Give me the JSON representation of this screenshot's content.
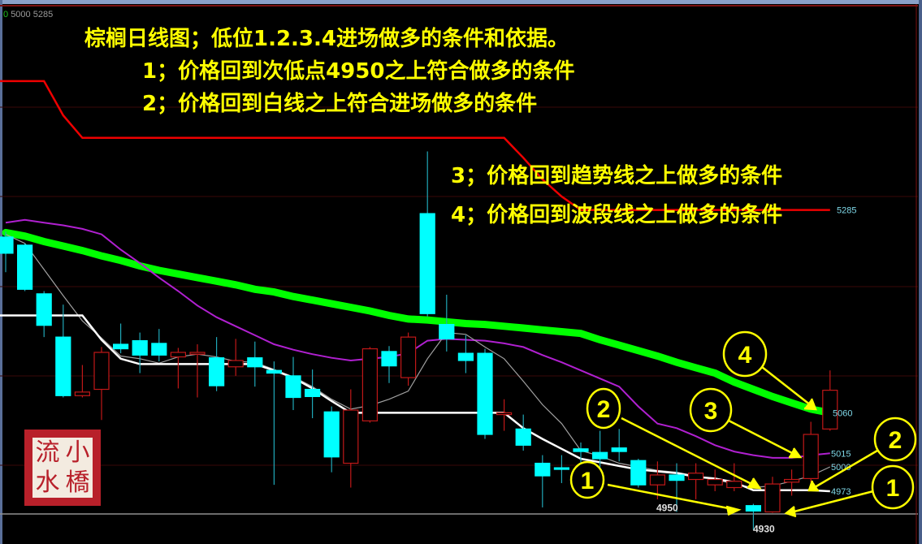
{
  "header": {
    "legend_zero": "0",
    "legend_values": "5000 5285"
  },
  "notes": {
    "title": "棕榈日线图；低位1.2.3.4进场做多的条件和依据。",
    "n1": "1；价格回到次低点4950之上符合做多的条件",
    "n2": "2；价格回到白线之上符合进场做多的条件",
    "n3": "3；价格回到趋势线之上做多的条件",
    "n4": "4；价格回到波段线之上做多的条件"
  },
  "markers": [
    "1",
    "2",
    "3",
    "4",
    "2",
    "1"
  ],
  "seal": {
    "chars": [
      "流",
      "小",
      "水",
      "橋"
    ]
  },
  "colors": {
    "up": "#c01818",
    "down": "#00ffff",
    "trend": "#00ff00",
    "band": "#b020d0",
    "white_line": "#ffffff",
    "thin_line": "#a0a0a0",
    "top_line": "#ee0000",
    "annotation": "#ffff00"
  },
  "chart_data": {
    "type": "candlestick",
    "ylim": [
      4914,
      5518
    ],
    "candles": [
      [
        5255,
        5261,
        5216,
        5237
      ],
      [
        5246,
        5248,
        5195,
        5197
      ],
      [
        5192,
        5195,
        5144,
        5157
      ],
      [
        5144,
        5180,
        5077,
        5079
      ],
      [
        5079,
        5113,
        5077,
        5083
      ],
      [
        5086,
        5133,
        5052,
        5127
      ],
      [
        5136,
        5159,
        5126,
        5131
      ],
      [
        5140,
        5149,
        5104,
        5124
      ],
      [
        5137,
        5153,
        5117,
        5124
      ],
      [
        5122,
        5132,
        5087,
        5127
      ],
      [
        5125,
        5136,
        5077,
        5127
      ],
      [
        5121,
        5144,
        5084,
        5090
      ],
      [
        5111,
        5142,
        5101,
        5118
      ],
      [
        5121,
        5139,
        5089,
        5111
      ],
      [
        5107,
        5117,
        4980,
        5104
      ],
      [
        5101,
        5122,
        5063,
        5077
      ],
      [
        5086,
        5108,
        5054,
        5078
      ],
      [
        5061,
        5067,
        4994,
        5011
      ],
      [
        5004,
        5086,
        4977,
        5063
      ],
      [
        5051,
        5133,
        5049,
        5131
      ],
      [
        5128,
        5134,
        5093,
        5112
      ],
      [
        5099,
        5149,
        5090,
        5144
      ],
      [
        5281,
        5350,
        5167,
        5170
      ],
      [
        5158,
        5191,
        5128,
        5142
      ],
      [
        5126,
        5146,
        5104,
        5118
      ],
      [
        5126,
        5131,
        5031,
        5036
      ],
      [
        5058,
        5075,
        5040,
        5060
      ],
      [
        5042,
        5058,
        5018,
        5024
      ],
      [
        5004,
        5013,
        4955,
        4990
      ],
      [
        4999,
        5013,
        4982,
        4998
      ],
      [
        5020,
        5027,
        5000,
        5017
      ],
      [
        5016,
        5040,
        4997,
        5009
      ],
      [
        5021,
        5042,
        5006,
        5017
      ],
      [
        5007,
        5009,
        4977,
        4980
      ],
      [
        4980,
        5006,
        4964,
        4991
      ],
      [
        4991,
        5004,
        4950,
        4985
      ],
      [
        4986,
        5004,
        4964,
        4993
      ],
      [
        4980,
        4997,
        4973,
        4986
      ],
      [
        4977,
        5004,
        4973,
        4984
      ],
      [
        4957,
        4959,
        4930,
        4951
      ],
      [
        4950,
        4989,
        4949,
        4981
      ],
      [
        4983,
        4997,
        4968,
        4986
      ],
      [
        4987,
        5050,
        4983,
        5036
      ],
      [
        5042,
        5107,
        5040,
        5085
      ]
    ],
    "candle_fields": [
      "open",
      "high",
      "low",
      "close"
    ],
    "lines": {
      "top_red": [
        5428,
        5428,
        5428,
        5390,
        5365,
        5365,
        5365,
        5365,
        5365,
        5365,
        5365,
        5365,
        5365,
        5365,
        5365,
        5365,
        5365,
        5365,
        5365,
        5365,
        5365,
        5365,
        5365,
        5365,
        5365,
        5365,
        5365,
        5343,
        5319,
        5300,
        5285,
        5285,
        5285,
        5285,
        5285,
        5285,
        5285,
        5285,
        5285,
        5285,
        5285,
        5285,
        5285,
        5285
      ],
      "green_trend": [
        5260,
        5256,
        5250,
        5245,
        5240,
        5234,
        5229,
        5223,
        5218,
        5214,
        5210,
        5206,
        5202,
        5197,
        5194,
        5189,
        5185,
        5181,
        5177,
        5173,
        5168,
        5164,
        5163,
        5161,
        5159,
        5158,
        5156,
        5154,
        5152,
        5150,
        5148,
        5141,
        5135,
        5129,
        5123,
        5116,
        5110,
        5104,
        5094,
        5086,
        5078,
        5071,
        5064,
        5060
      ],
      "purple_band": [
        5271,
        5274,
        5271,
        5268,
        5264,
        5258,
        5241,
        5226,
        5210,
        5195,
        5179,
        5166,
        5156,
        5146,
        5136,
        5130,
        5125,
        5121,
        5118,
        5120,
        5122,
        5126,
        5140,
        5142,
        5141,
        5140,
        5137,
        5133,
        5124,
        5116,
        5107,
        5098,
        5089,
        5067,
        5048,
        5043,
        5034,
        5024,
        5017,
        5013,
        5010,
        5010,
        5013,
        5015
      ],
      "white": [
        5168,
        5168,
        5168,
        5168,
        5168,
        5141,
        5120,
        5114,
        5114,
        5114,
        5114,
        5114,
        5114,
        5114,
        5107,
        5099,
        5087,
        5073,
        5060,
        5060,
        5060,
        5060,
        5060,
        5060,
        5060,
        5060,
        5060,
        5043,
        5031,
        5020,
        5009,
        5005,
        5001,
        4997,
        4995,
        4993,
        4989,
        4987,
        4983,
        4974,
        4974,
        4974,
        4974,
        4973
      ],
      "gray_thin": [
        5258,
        5248,
        5219,
        5190,
        5162,
        5143,
        5123,
        5120,
        5115,
        5122,
        5125,
        5122,
        5117,
        5116,
        5108,
        5100,
        5089,
        5075,
        5064,
        5068,
        5075,
        5084,
        5120,
        5149,
        5147,
        5133,
        5120,
        5095,
        5069,
        5048,
        5018,
        5012,
        5004,
        5000,
        4996,
        4994,
        4990,
        4986,
        4981,
        4977,
        4979,
        4984,
        4990,
        5000
      ]
    },
    "price_labels": [
      {
        "text": "5285",
        "value": 5285
      },
      {
        "text": "5060",
        "value": 5060
      },
      {
        "text": "5015",
        "value": 5015
      },
      {
        "text": "5000",
        "value": 5000
      },
      {
        "text": "4973",
        "value": 4973
      },
      {
        "text": "4950",
        "value": 4950
      },
      {
        "text": "4930",
        "value": 4930
      }
    ]
  }
}
